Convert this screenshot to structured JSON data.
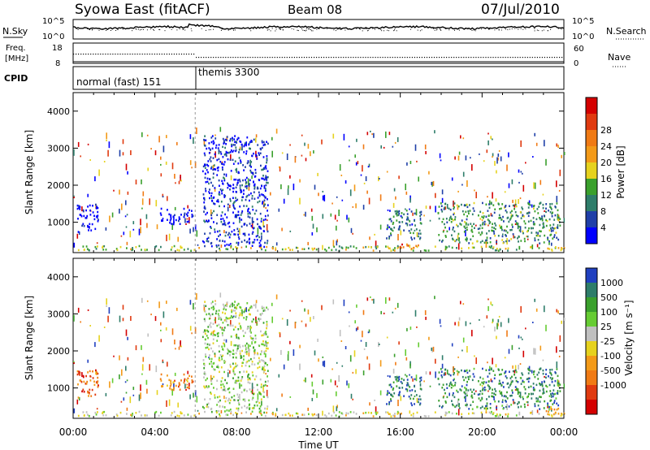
{
  "header": {
    "station": "Syowa East (fitACF)",
    "beam": "Beam 08",
    "date": "07/Jul/2010"
  },
  "noise_panel": {
    "left_label": "N.Sky",
    "right_label": "N.Search",
    "left_ticks": [
      "10^5",
      "10^0"
    ],
    "right_ticks": [
      "10^5",
      "10^0"
    ]
  },
  "freq_panel": {
    "left_label_1": "Freq.",
    "left_label_2": "[MHz]",
    "left_ticks": [
      "18",
      "8"
    ],
    "right_label": "Nave",
    "right_ticks": [
      "60",
      "0"
    ]
  },
  "cpid_panel": {
    "label": "CPID",
    "segments": [
      {
        "name": "normal (fast) 151",
        "start_hour": 0
      },
      {
        "name": "themis 3300",
        "start_hour": 5.97
      }
    ]
  },
  "chart_data": [
    {
      "type": "heatmap",
      "title": "",
      "xlabel": "Time UT",
      "ylabel": "Slant Range [km]",
      "xlim": [
        0,
        24
      ],
      "ylim": [
        180,
        4500
      ],
      "x_ticks": [
        "00:00",
        "04:00",
        "08:00",
        "12:00",
        "16:00",
        "20:00",
        "00:00"
      ],
      "y_ticks": [
        "1000",
        "2000",
        "3000",
        "4000"
      ],
      "colorbar": {
        "label": "Power [dB]",
        "ticks": [
          "4",
          "8",
          "12",
          "16",
          "20",
          "24",
          "28"
        ],
        "colors": [
          "#0000ff",
          "#1f3fa8",
          "#2e7d6a",
          "#3aa02c",
          "#e6d21e",
          "#f39a18",
          "#f07a14",
          "#e03a10",
          "#d40000"
        ]
      },
      "echo_regions": [
        {
          "t": [
            0,
            24
          ],
          "r": [
            200,
            330
          ],
          "level": 4
        },
        {
          "t": [
            0.1,
            1.2
          ],
          "r": [
            700,
            1500
          ],
          "level": 0
        },
        {
          "t": [
            4.2,
            5.9
          ],
          "r": [
            900,
            1350
          ],
          "level": 0
        },
        {
          "t": [
            6.3,
            9.5
          ],
          "r": [
            300,
            3300
          ],
          "level": 1
        },
        {
          "t": [
            8.8,
            9.4
          ],
          "r": [
            1700,
            2000
          ],
          "level": 1
        },
        {
          "t": [
            15.3,
            17.0
          ],
          "r": [
            500,
            1300
          ],
          "level": 2
        },
        {
          "t": [
            17.8,
            23.8
          ],
          "r": [
            400,
            1500
          ],
          "level": 3
        },
        {
          "t": [
            15.8,
            17.0
          ],
          "r": [
            250,
            400
          ],
          "level": 7
        }
      ]
    },
    {
      "type": "heatmap",
      "title": "",
      "xlabel": "Time UT",
      "ylabel": "Slant Range [km]",
      "xlim": [
        0,
        24
      ],
      "ylim": [
        180,
        4500
      ],
      "x_ticks": [
        "00:00",
        "04:00",
        "08:00",
        "12:00",
        "16:00",
        "20:00",
        "00:00"
      ],
      "y_ticks": [
        "1000",
        "2000",
        "3000",
        "4000"
      ],
      "colorbar": {
        "label": "Velocity [m s⁻¹]",
        "ticks": [
          "1000",
          "500",
          "100",
          "25",
          "-25",
          "-100",
          "-500",
          "-1000"
        ],
        "colors": [
          "#2040c0",
          "#2e7d6a",
          "#3aa02c",
          "#66cc33",
          "#c0c0c0",
          "#e6d21e",
          "#f39a18",
          "#f07a14",
          "#e03a10",
          "#d40000"
        ]
      },
      "echo_regions": [
        {
          "t": [
            0,
            24
          ],
          "r": [
            200,
            330
          ],
          "level": 5
        },
        {
          "t": [
            0.1,
            1.2
          ],
          "r": [
            700,
            1500
          ],
          "level": 8
        },
        {
          "t": [
            4.2,
            5.9
          ],
          "r": [
            900,
            1350
          ],
          "level": 7
        },
        {
          "t": [
            6.3,
            9.5
          ],
          "r": [
            300,
            3300
          ],
          "level": 4
        },
        {
          "t": [
            8.8,
            9.4
          ],
          "r": [
            1700,
            2000
          ],
          "level": 5
        },
        {
          "t": [
            15.3,
            17.0
          ],
          "r": [
            500,
            1300
          ],
          "level": 1
        },
        {
          "t": [
            17.8,
            23.8
          ],
          "r": [
            400,
            1500
          ],
          "level": 2
        },
        {
          "t": [
            23.0,
            23.8
          ],
          "r": [
            250,
            500
          ],
          "level": 7
        }
      ]
    }
  ]
}
